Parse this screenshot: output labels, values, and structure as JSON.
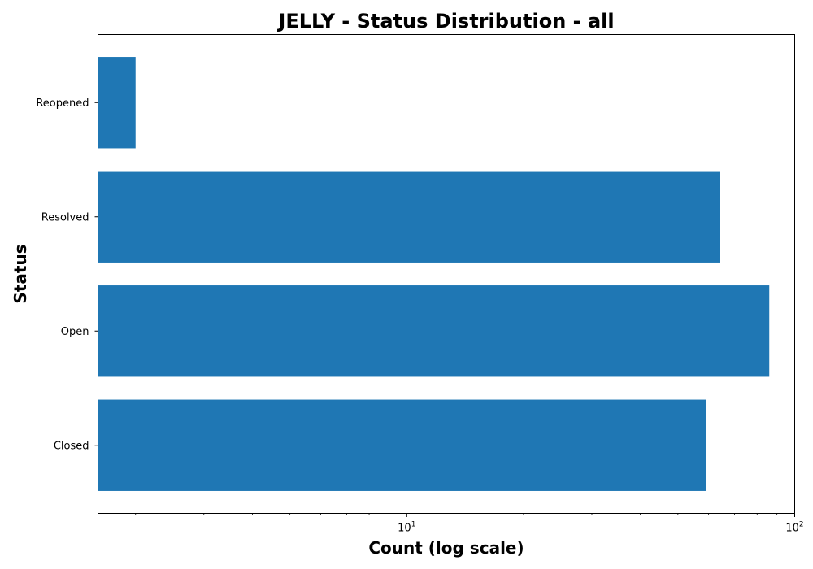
{
  "chart_data": {
    "type": "bar",
    "orientation": "horizontal",
    "title": "JELLY - Status Distribution - all",
    "xlabel": "Count (log scale)",
    "ylabel": "Status",
    "x_scale": "log",
    "xlim": [
      1.6,
      100
    ],
    "x_major_ticks": [
      {
        "value": 10,
        "base": "10",
        "exponent": "1"
      },
      {
        "value": 100,
        "base": "10",
        "exponent": "2"
      }
    ],
    "categories": [
      "Closed",
      "Open",
      "Resolved",
      "Reopened"
    ],
    "values": [
      59,
      86,
      64,
      2
    ],
    "bar_color": "#1f77b4",
    "grid": false,
    "legend": "none"
  }
}
